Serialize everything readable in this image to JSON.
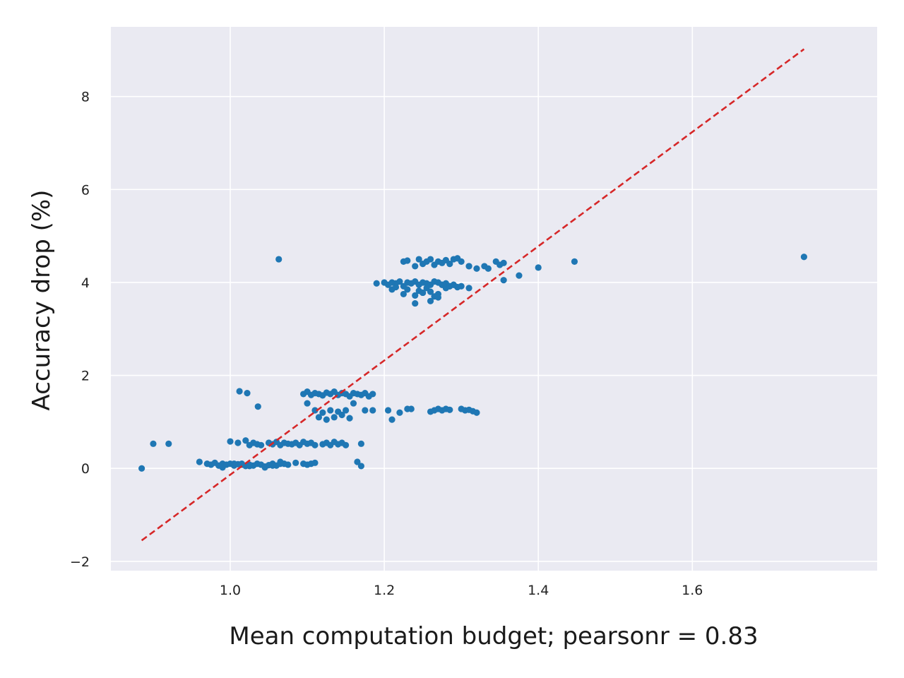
{
  "chart_data": {
    "type": "scatter",
    "title": "",
    "xlabel": "Mean computation budget; pearsonr = 0.83",
    "ylabel": "Accuracy drop (%)",
    "xlim": [
      0.845,
      1.84
    ],
    "ylim": [
      -2.2,
      9.5
    ],
    "xticks": [
      1.0,
      1.2,
      1.4,
      1.6
    ],
    "xtick_labels": [
      "1.0",
      "1.2",
      "1.4",
      "1.6"
    ],
    "yticks": [
      -2,
      0,
      2,
      4,
      6,
      8
    ],
    "ytick_labels": [
      "−2",
      "0",
      "2",
      "4",
      "6",
      "8"
    ],
    "grid": true,
    "colors": {
      "background": "#eaeaf2",
      "grid": "#ffffff",
      "points": "#1f77b4",
      "fit_line": "#d62728"
    },
    "series": [
      {
        "name": "configurations",
        "kind": "points",
        "x": [
          0.885,
          0.9,
          0.92,
          1.063,
          1.012,
          1.022,
          1.036,
          0.96,
          0.97,
          0.975,
          0.98,
          0.985,
          0.99,
          0.995,
          1.0,
          1.005,
          1.01,
          1.015,
          1.02,
          1.025,
          1.03,
          1.035,
          1.04,
          1.045,
          1.05,
          1.055,
          1.06,
          1.065,
          1.075,
          1.085,
          1.095,
          1.1,
          1.105,
          1.11,
          1.165,
          1.17,
          0.99,
          1.005,
          1.015,
          1.025,
          1.045,
          1.055,
          1.065,
          1.07,
          1.0,
          1.01,
          1.02,
          1.025,
          1.03,
          1.035,
          1.04,
          1.05,
          1.055,
          1.06,
          1.065,
          1.07,
          1.075,
          1.08,
          1.085,
          1.09,
          1.095,
          1.1,
          1.105,
          1.11,
          1.12,
          1.125,
          1.13,
          1.135,
          1.14,
          1.145,
          1.15,
          1.17,
          1.095,
          1.1,
          1.105,
          1.11,
          1.115,
          1.12,
          1.125,
          1.13,
          1.135,
          1.14,
          1.145,
          1.15,
          1.155,
          1.16,
          1.165,
          1.17,
          1.175,
          1.18,
          1.185,
          1.1,
          1.11,
          1.115,
          1.12,
          1.125,
          1.13,
          1.135,
          1.14,
          1.145,
          1.15,
          1.155,
          1.16,
          1.175,
          1.185,
          1.205,
          1.21,
          1.22,
          1.23,
          1.235,
          1.26,
          1.265,
          1.27,
          1.275,
          1.28,
          1.285,
          1.3,
          1.305,
          1.31,
          1.315,
          1.32,
          1.19,
          1.2,
          1.205,
          1.21,
          1.215,
          1.22,
          1.225,
          1.23,
          1.235,
          1.24,
          1.245,
          1.25,
          1.255,
          1.26,
          1.265,
          1.27,
          1.275,
          1.28,
          1.285,
          1.29,
          1.21,
          1.215,
          1.225,
          1.23,
          1.24,
          1.245,
          1.25,
          1.255,
          1.26,
          1.265,
          1.27,
          1.275,
          1.28,
          1.285,
          1.29,
          1.295,
          1.3,
          1.31,
          1.225,
          1.23,
          1.24,
          1.245,
          1.25,
          1.255,
          1.26,
          1.265,
          1.27,
          1.275,
          1.28,
          1.285,
          1.29,
          1.295,
          1.3,
          1.31,
          1.32,
          1.33,
          1.335,
          1.345,
          1.35,
          1.355,
          1.24,
          1.25,
          1.26,
          1.27,
          1.295,
          1.31,
          1.355,
          1.375,
          1.4,
          1.447,
          1.745
        ],
        "y": [
          0.0,
          0.53,
          0.53,
          4.5,
          1.66,
          1.62,
          1.33,
          0.14,
          0.1,
          0.08,
          0.12,
          0.06,
          0.1,
          0.08,
          0.1,
          0.06,
          0.09,
          0.1,
          0.05,
          0.08,
          0.06,
          0.1,
          0.08,
          0.04,
          0.07,
          0.1,
          0.06,
          0.1,
          0.08,
          0.12,
          0.1,
          0.08,
          0.1,
          0.12,
          0.14,
          0.05,
          0.02,
          0.1,
          0.08,
          0.05,
          0.02,
          0.06,
          0.14,
          0.1,
          0.58,
          0.55,
          0.6,
          0.5,
          0.55,
          0.52,
          0.5,
          0.55,
          0.52,
          0.57,
          0.5,
          0.55,
          0.53,
          0.52,
          0.55,
          0.5,
          0.57,
          0.53,
          0.55,
          0.5,
          0.52,
          0.55,
          0.5,
          0.57,
          0.52,
          0.55,
          0.5,
          0.53,
          1.6,
          1.65,
          1.58,
          1.62,
          1.6,
          1.57,
          1.63,
          1.6,
          1.65,
          1.58,
          1.62,
          1.6,
          1.55,
          1.62,
          1.6,
          1.58,
          1.62,
          1.55,
          1.6,
          1.4,
          1.25,
          1.1,
          1.2,
          1.05,
          1.25,
          1.1,
          1.22,
          1.15,
          1.25,
          1.08,
          1.4,
          1.25,
          1.25,
          1.25,
          1.05,
          1.2,
          1.28,
          1.28,
          1.22,
          1.25,
          1.28,
          1.25,
          1.28,
          1.26,
          1.28,
          1.25,
          1.26,
          1.23,
          1.2,
          3.98,
          4.0,
          3.95,
          4.0,
          3.98,
          4.02,
          3.92,
          4.0,
          3.98,
          4.02,
          3.95,
          4.0,
          3.98,
          3.95,
          4.02,
          4.0,
          3.95,
          3.98,
          3.92,
          3.95,
          3.85,
          3.9,
          3.75,
          3.85,
          3.72,
          3.82,
          3.78,
          3.88,
          3.8,
          3.7,
          3.75,
          3.95,
          3.88,
          3.92,
          3.95,
          3.9,
          3.92,
          3.88,
          4.45,
          4.47,
          4.35,
          4.5,
          4.4,
          4.45,
          4.5,
          4.38,
          4.45,
          4.42,
          4.48,
          4.4,
          4.5,
          4.52,
          4.45,
          4.35,
          4.3,
          4.35,
          4.3,
          4.45,
          4.38,
          4.42,
          3.55,
          3.78,
          3.6,
          3.68,
          3.9,
          4.35,
          4.05,
          4.15,
          4.32,
          4.45,
          4.55
        ]
      },
      {
        "name": "linear fit",
        "kind": "dashed-line",
        "x": [
          0.885,
          1.745
        ],
        "y": [
          -1.55,
          9.02
        ]
      }
    ]
  }
}
